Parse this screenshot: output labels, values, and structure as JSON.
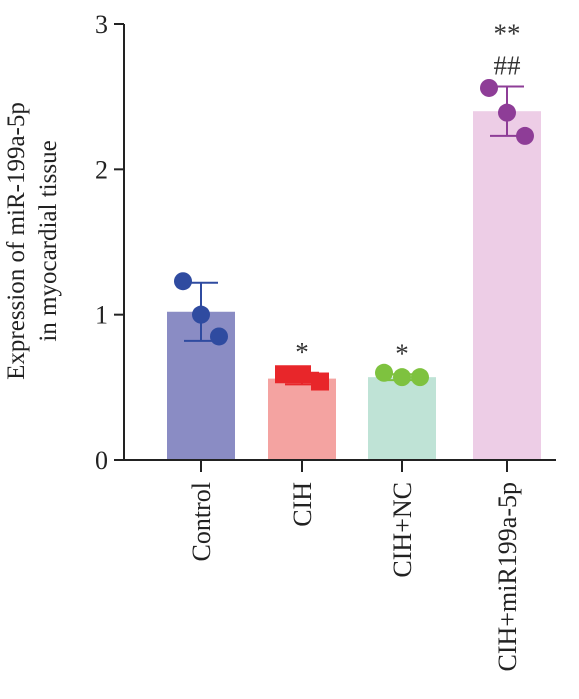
{
  "chart_data": {
    "type": "bar",
    "ylabel_lines": [
      "Expression of miR-199a-5p",
      "in myocardial tissue"
    ],
    "xlabel": "",
    "ylim": [
      0,
      3
    ],
    "yticks": [
      "0",
      "1",
      "2",
      "3"
    ],
    "categories": [
      "Control",
      "CIH",
      "CIH+NC",
      "CIH+miR199a-5p"
    ],
    "values": [
      1.02,
      0.56,
      0.57,
      2.4
    ],
    "error": [
      0.2,
      0.04,
      0.02,
      0.17
    ],
    "points": [
      [
        1.23,
        1.0,
        0.85
      ],
      [
        0.59,
        0.59,
        0.54
      ],
      [
        0.6,
        0.57,
        0.57
      ],
      [
        2.56,
        2.39,
        2.23
      ]
    ],
    "significance": [
      [],
      [
        "*"
      ],
      [
        "*"
      ],
      [
        "##",
        "**"
      ]
    ],
    "bar_colors": [
      "#8a8cc4",
      "#f4a3a1",
      "#bfe3d6",
      "#edcde6"
    ],
    "point_colors": [
      "#2f4ba0",
      "#e8262a",
      "#7ec23f",
      "#8e3d97"
    ],
    "point_shapes": [
      "circle",
      "square",
      "circle",
      "circle"
    ]
  }
}
